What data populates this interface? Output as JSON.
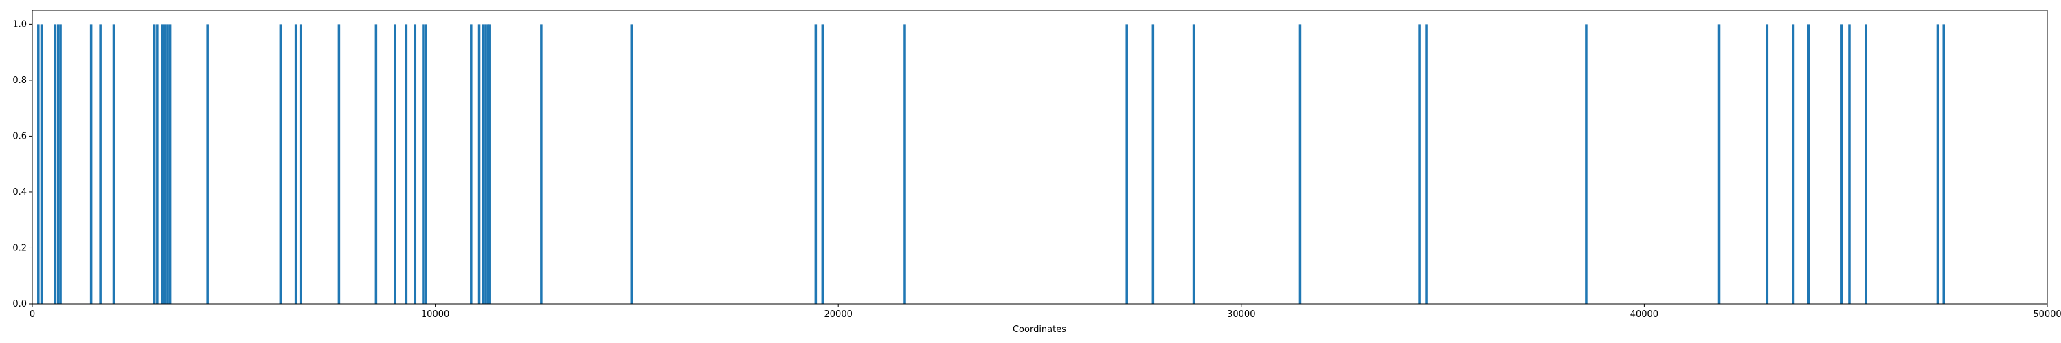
{
  "chart_data": {
    "type": "bar",
    "title": "",
    "xlabel": "Coordinates",
    "ylabel": "",
    "xlim": [
      0,
      50000
    ],
    "ylim": [
      0,
      1.05
    ],
    "grid": false,
    "bar_color": "#1f77b4",
    "x_ticks": [
      0,
      10000,
      20000,
      30000,
      40000,
      50000
    ],
    "y_ticks": [
      0.0,
      0.2,
      0.4,
      0.6,
      0.8,
      1.0
    ],
    "x_tick_labels": [
      "0",
      "10000",
      "20000",
      "30000",
      "40000",
      "50000"
    ],
    "y_tick_labels": [
      "0.0",
      "0.2",
      "0.4",
      "0.6",
      "0.8",
      "1.0"
    ],
    "x": [
      150,
      230,
      560,
      640,
      700,
      1460,
      1690,
      2020,
      3030,
      3100,
      3230,
      3300,
      3360,
      3420,
      4350,
      6160,
      6540,
      6660,
      7610,
      8530,
      9000,
      9280,
      9500,
      9700,
      9770,
      10890,
      11090,
      11190,
      11250,
      11310,
      11340,
      12630,
      14870,
      19440,
      19610,
      21650,
      27160,
      27810,
      28820,
      31460,
      34420,
      34590,
      38560,
      41860,
      43050,
      43700,
      44080,
      44900,
      45090,
      45500,
      47280,
      47430
    ],
    "values": [
      1,
      1,
      1,
      1,
      1,
      1,
      1,
      1,
      1,
      1,
      1,
      1,
      1,
      1,
      1,
      1,
      1,
      1,
      1,
      1,
      1,
      1,
      1,
      1,
      1,
      1,
      1,
      1,
      1,
      1,
      1,
      1,
      1,
      1,
      1,
      1,
      1,
      1,
      1,
      1,
      1,
      1,
      1,
      1,
      1,
      1,
      1,
      1,
      1,
      1,
      1,
      1
    ]
  }
}
